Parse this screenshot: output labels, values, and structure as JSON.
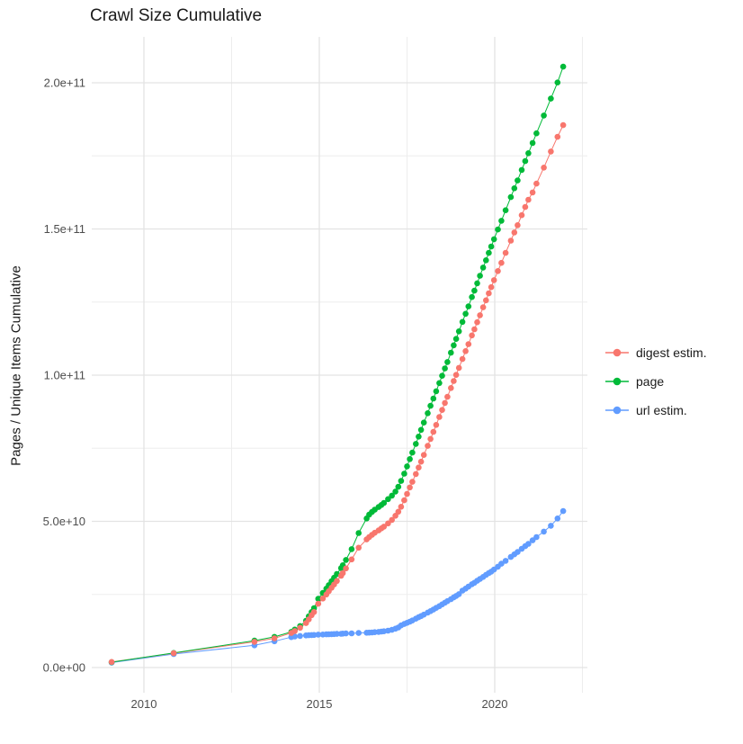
{
  "chart_data": {
    "type": "line",
    "points_shown": true,
    "title": "Crawl Size Cumulative",
    "xlabel": "",
    "ylabel": "Pages / Unique Items Cumulative",
    "units_note": "series values are cumulative counts in billions (1e9)",
    "x_axis": {
      "tick_labels": [
        "2010",
        "2015",
        "2020"
      ],
      "major_ticks": [
        2010,
        2015,
        2020
      ],
      "minor_ticks": [
        2012.5,
        2017.5,
        2022.5
      ],
      "range": [
        2008.45,
        2022.6
      ],
      "grid": true
    },
    "y_axis": {
      "tick_labels": [
        "0.0e+00",
        "5.0e+10",
        "1.0e+11",
        "1.5e+11",
        "2.0e+11"
      ],
      "major_ticks_e9": [
        0,
        50,
        100,
        150,
        200
      ],
      "minor_ticks_e9": [
        25,
        75,
        125,
        175
      ],
      "range_e9": [
        -8.5,
        215.7
      ],
      "grid": true
    },
    "legend": {
      "position": "right",
      "items": [
        {
          "label": "digest estim.",
          "color": "#F8766D"
        },
        {
          "label": "page",
          "color": "#00BA38"
        },
        {
          "label": "url estim.",
          "color": "#619CFF"
        }
      ]
    },
    "x": [
      2009.08,
      2010.85,
      2013.15,
      2013.72,
      2014.2,
      2014.3,
      2014.45,
      2014.62,
      2014.7,
      2014.78,
      2014.85,
      2014.97,
      2015.1,
      2015.2,
      2015.27,
      2015.35,
      2015.42,
      2015.5,
      2015.62,
      2015.67,
      2015.76,
      2015.92,
      2016.12,
      2016.35,
      2016.42,
      2016.5,
      2016.58,
      2016.69,
      2016.77,
      2016.84,
      2016.96,
      2017.07,
      2017.17,
      2017.25,
      2017.33,
      2017.42,
      2017.5,
      2017.58,
      2017.65,
      2017.75,
      2017.83,
      2017.9,
      2017.98,
      2018.09,
      2018.17,
      2018.25,
      2018.33,
      2018.42,
      2018.5,
      2018.58,
      2018.65,
      2018.75,
      2018.83,
      2018.9,
      2018.98,
      2019.08,
      2019.17,
      2019.25,
      2019.35,
      2019.42,
      2019.5,
      2019.58,
      2019.67,
      2019.75,
      2019.83,
      2019.9,
      2019.98,
      2020.09,
      2020.19,
      2020.31,
      2020.46,
      2020.56,
      2020.65,
      2020.77,
      2020.87,
      2020.96,
      2021.08,
      2021.19,
      2021.4,
      2021.6,
      2021.79,
      2021.95
    ],
    "series": [
      {
        "name": "digest estim.",
        "color": "#F8766D",
        "values_e9": [
          1.9,
          4.9,
          8.8,
          10.0,
          11.8,
          12.5,
          13.6,
          15.2,
          16.5,
          17.9,
          19.0,
          21.8,
          23.6,
          25.0,
          26.1,
          27.3,
          28.4,
          29.6,
          31.4,
          32.3,
          33.9,
          37.0,
          41.0,
          43.8,
          44.6,
          45.4,
          46.1,
          46.9,
          47.6,
          48.2,
          49.3,
          50.5,
          51.9,
          53.3,
          55.0,
          57.2,
          59.4,
          61.6,
          63.5,
          66.2,
          68.4,
          70.4,
          72.7,
          75.8,
          78.2,
          80.6,
          83.0,
          85.7,
          88.1,
          90.5,
          92.6,
          95.6,
          98.0,
          100.1,
          102.5,
          105.5,
          108.2,
          110.6,
          113.6,
          115.7,
          118.1,
          120.5,
          123.2,
          125.6,
          128.0,
          130.1,
          132.5,
          135.6,
          138.4,
          141.8,
          146.0,
          148.8,
          151.3,
          154.7,
          157.5,
          160.0,
          162.5,
          165.5,
          171.0,
          176.5,
          181.5,
          185.5
        ]
      },
      {
        "name": "page",
        "color": "#00BA38",
        "values_e9": [
          1.8,
          5.0,
          9.2,
          10.5,
          12.2,
          13.0,
          14.2,
          16.0,
          17.5,
          19.0,
          20.3,
          23.5,
          25.5,
          27.0,
          28.2,
          29.5,
          30.7,
          32.0,
          34.0,
          35.0,
          36.8,
          40.5,
          46.0,
          51.0,
          52.3,
          53.2,
          54.0,
          54.9,
          55.6,
          56.3,
          57.6,
          58.8,
          60.2,
          61.8,
          63.8,
          66.3,
          68.8,
          71.3,
          73.5,
          76.5,
          79.0,
          81.3,
          83.8,
          87.0,
          89.5,
          92.0,
          94.5,
          97.3,
          99.8,
          102.3,
          104.5,
          107.7,
          110.2,
          112.4,
          115.0,
          118.2,
          121.0,
          123.5,
          126.7,
          128.9,
          131.4,
          134.0,
          136.8,
          139.3,
          141.8,
          144.0,
          146.5,
          149.8,
          152.8,
          156.4,
          160.9,
          163.9,
          166.6,
          170.2,
          173.2,
          175.9,
          179.4,
          182.7,
          188.8,
          194.6,
          200.1,
          205.5
        ]
      },
      {
        "name": "url estim.",
        "color": "#619CFF",
        "values_e9": [
          1.7,
          4.6,
          7.6,
          9.0,
          10.4,
          10.6,
          10.8,
          11.0,
          11.05,
          11.1,
          11.15,
          11.25,
          11.3,
          11.35,
          11.4,
          11.42,
          11.45,
          11.5,
          11.55,
          11.6,
          11.65,
          11.7,
          11.8,
          11.9,
          11.95,
          12.0,
          12.1,
          12.2,
          12.3,
          12.4,
          12.6,
          12.9,
          13.3,
          13.7,
          14.4,
          14.9,
          15.3,
          15.7,
          16.1,
          16.7,
          17.2,
          17.6,
          18.1,
          18.8,
          19.3,
          19.8,
          20.4,
          21.0,
          21.6,
          22.2,
          22.7,
          23.4,
          24.0,
          24.5,
          25.1,
          26.3,
          27.0,
          27.7,
          28.5,
          29.0,
          29.7,
          30.3,
          31.0,
          31.7,
          32.3,
          32.8,
          33.5,
          34.5,
          35.5,
          36.5,
          37.8,
          38.7,
          39.5,
          40.6,
          41.5,
          42.3,
          43.5,
          44.6,
          46.5,
          48.5,
          51.0,
          53.5
        ]
      }
    ],
    "style": {
      "background": "#ffffff",
      "grid_major_color": "#e3e3e3",
      "grid_minor_color": "#ededed",
      "axis_text_color": "#4d4d4d",
      "title_color": "#1a1a1a"
    }
  }
}
